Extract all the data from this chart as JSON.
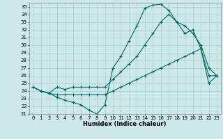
{
  "title": "",
  "xlabel": "Humidex (Indice chaleur)",
  "bg_color": "#cce8e8",
  "grid_color": "#aacccc",
  "line_color": "#006666",
  "xlim": [
    -0.5,
    23.5
  ],
  "ylim": [
    21,
    35.5
  ],
  "yticks": [
    21,
    22,
    23,
    24,
    25,
    26,
    27,
    28,
    29,
    30,
    31,
    32,
    33,
    34,
    35
  ],
  "xticks": [
    0,
    1,
    2,
    3,
    4,
    5,
    6,
    7,
    8,
    9,
    10,
    11,
    12,
    13,
    14,
    15,
    16,
    17,
    18,
    19,
    20,
    21,
    22,
    23
  ],
  "line1_x": [
    0,
    1,
    2,
    3,
    4,
    5,
    6,
    7,
    8,
    9,
    10,
    11,
    12,
    13,
    14,
    15,
    16,
    17,
    18,
    19,
    20,
    21,
    22,
    23
  ],
  "line1_y": [
    24.5,
    24.0,
    23.7,
    23.2,
    22.8,
    22.5,
    22.2,
    21.5,
    21.0,
    22.2,
    27.0,
    28.5,
    30.5,
    32.5,
    34.8,
    35.2,
    35.3,
    34.5,
    33.0,
    31.5,
    32.0,
    29.5,
    25.0,
    26.0
  ],
  "line2_x": [
    0,
    1,
    2,
    3,
    4,
    5,
    6,
    7,
    8,
    9,
    10,
    11,
    12,
    13,
    14,
    15,
    16,
    17,
    18,
    19,
    20,
    21,
    22,
    23
  ],
  "line2_y": [
    24.5,
    24.0,
    23.7,
    24.5,
    24.2,
    24.5,
    24.5,
    24.5,
    24.5,
    24.5,
    25.5,
    26.5,
    27.5,
    28.5,
    30.0,
    31.5,
    33.0,
    34.0,
    33.0,
    32.5,
    31.5,
    30.0,
    27.0,
    26.0
  ],
  "line3_x": [
    0,
    1,
    2,
    3,
    4,
    5,
    6,
    7,
    8,
    9,
    10,
    11,
    12,
    13,
    14,
    15,
    16,
    17,
    18,
    19,
    20,
    21,
    22,
    23
  ],
  "line3_y": [
    24.5,
    24.0,
    23.7,
    23.5,
    23.5,
    23.5,
    23.5,
    23.5,
    23.5,
    23.5,
    24.0,
    24.5,
    25.0,
    25.5,
    26.0,
    26.5,
    27.0,
    27.5,
    28.0,
    28.5,
    29.0,
    29.5,
    26.0,
    26.0
  ],
  "tick_fontsize": 5,
  "xlabel_fontsize": 6,
  "marker_size": 3,
  "linewidth": 0.8
}
